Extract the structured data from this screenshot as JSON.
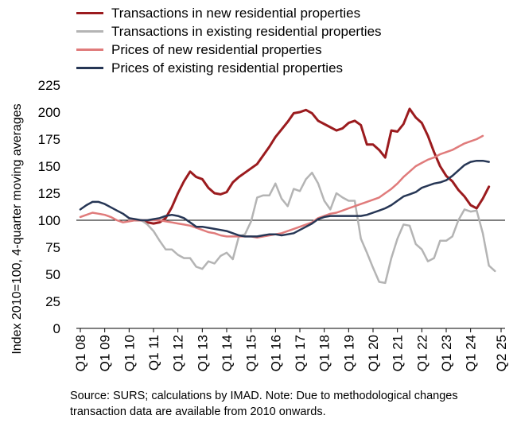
{
  "chart_data": {
    "type": "line",
    "ylabel": "Index 2010=100, 4-quarter moving averages",
    "ylim": [
      0,
      225
    ],
    "yticks": [
      0,
      25,
      50,
      75,
      100,
      125,
      150,
      175,
      200,
      225
    ],
    "xlim_index": [
      0,
      69
    ],
    "xtick_labels": [
      "Q1 08",
      "Q1 09",
      "Q1 10",
      "Q1 11",
      "Q1 12",
      "Q1 13",
      "Q1 14",
      "Q1 15",
      "Q1 16",
      "Q1 17",
      "Q1 18",
      "Q1 19",
      "Q1 20",
      "Q1 21",
      "Q1 22",
      "Q1 23",
      "Q1 24",
      "Q2 25"
    ],
    "xtick_positions": [
      0,
      4,
      8,
      12,
      16,
      20,
      24,
      28,
      32,
      36,
      40,
      44,
      48,
      52,
      56,
      60,
      64,
      69
    ],
    "reference_line": 100,
    "grid": false,
    "legend_position": "top",
    "note": "Source: SURS; calculations by IMAD. Note: Due to methodological changes transaction data are available from 2010 onwards.",
    "series": [
      {
        "name": "Transactions in new residential properties",
        "color": "#9b1b1e",
        "width": 3,
        "start": 8,
        "values": [
          100,
          100,
          100,
          98,
          97,
          98,
          102,
          112,
          125,
          136,
          145,
          140,
          138,
          130,
          125,
          124,
          126,
          135,
          140,
          144,
          148,
          152,
          160,
          168,
          177,
          184,
          191,
          199,
          200,
          202,
          199,
          192,
          189,
          186,
          183,
          185,
          190,
          192,
          188,
          170,
          170,
          165,
          158,
          183,
          182,
          189,
          203,
          195,
          190,
          178,
          163,
          150,
          141,
          136,
          128,
          122,
          114,
          111,
          120,
          131
        ]
      },
      {
        "name": "Transactions in existing residential properties",
        "color": "#b4b4b4",
        "width": 2.5,
        "start": 8,
        "values": [
          100,
          100,
          100,
          96,
          90,
          81,
          73,
          73,
          68,
          65,
          65,
          57,
          55,
          62,
          60,
          67,
          70,
          64,
          85,
          87,
          99,
          121,
          123,
          123,
          134,
          120,
          113,
          129,
          127,
          138,
          144,
          134,
          118,
          110,
          125,
          121,
          118,
          118,
          83,
          70,
          56,
          43,
          42,
          65,
          83,
          96,
          95,
          78,
          73,
          62,
          65,
          81,
          81,
          85,
          100,
          110,
          108,
          109,
          88,
          58,
          53
        ]
      },
      {
        "name": "Prices of new residential properties",
        "color": "#e07b7b",
        "width": 2.5,
        "start": 0,
        "values": [
          103,
          105,
          107,
          106,
          105,
          103,
          100,
          98,
          99,
          100,
          100,
          100,
          100,
          100,
          99,
          98,
          97,
          96,
          95,
          93,
          91,
          89,
          88,
          86,
          85,
          85,
          85,
          85,
          85,
          84,
          85,
          86,
          87,
          88,
          90,
          92,
          94,
          96,
          98,
          102,
          104,
          106,
          107,
          109,
          111,
          113,
          115,
          117,
          119,
          121,
          125,
          129,
          134,
          140,
          145,
          150,
          153,
          156,
          158,
          161,
          163,
          165,
          168,
          171,
          173,
          175,
          178
        ]
      },
      {
        "name": "Prices of existing residential properties",
        "color": "#263655",
        "width": 2.5,
        "start": 0,
        "values": [
          110,
          114,
          117,
          117,
          115,
          112,
          109,
          106,
          102,
          101,
          100,
          100,
          101,
          102,
          104,
          105,
          104,
          102,
          98,
          94,
          94,
          93,
          92,
          91,
          90,
          88,
          86,
          85,
          85,
          85,
          86,
          87,
          87,
          86,
          87,
          88,
          91,
          94,
          97,
          101,
          103,
          104,
          104,
          104,
          104,
          104,
          104,
          105,
          107,
          109,
          111,
          114,
          118,
          122,
          124,
          126,
          130,
          132,
          134,
          135,
          137,
          141,
          146,
          151,
          154,
          155,
          155,
          154
        ]
      }
    ]
  }
}
